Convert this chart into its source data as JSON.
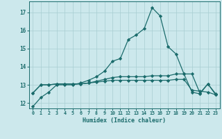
{
  "title": "",
  "xlabel": "Humidex (Indice chaleur)",
  "bg_color": "#cce8ec",
  "line_color": "#1a6b6b",
  "grid_color": "#a8cdd1",
  "xlim": [
    -0.5,
    23.5
  ],
  "ylim": [
    11.7,
    17.6
  ],
  "xticks": [
    0,
    1,
    2,
    3,
    4,
    5,
    6,
    7,
    8,
    9,
    10,
    11,
    12,
    13,
    14,
    15,
    16,
    17,
    18,
    19,
    20,
    21,
    22,
    23
  ],
  "yticks": [
    12,
    13,
    14,
    15,
    16,
    17
  ],
  "series": [
    [
      11.8,
      12.3,
      12.6,
      13.0,
      13.0,
      13.0,
      13.1,
      13.25,
      13.45,
      13.75,
      14.3,
      14.45,
      15.5,
      15.75,
      16.1,
      17.25,
      16.8,
      15.1,
      14.7,
      13.6,
      12.6,
      12.5,
      13.05,
      12.45
    ],
    [
      12.55,
      13.0,
      13.0,
      13.05,
      13.05,
      13.05,
      13.05,
      13.1,
      13.2,
      13.3,
      13.4,
      13.45,
      13.45,
      13.45,
      13.45,
      13.5,
      13.5,
      13.5,
      13.6,
      13.6,
      13.6,
      12.55,
      13.05,
      12.5
    ],
    [
      12.55,
      13.0,
      13.0,
      13.05,
      13.05,
      13.05,
      13.05,
      13.1,
      13.15,
      13.2,
      13.25,
      13.25,
      13.25,
      13.25,
      13.25,
      13.25,
      13.25,
      13.25,
      13.3,
      13.3,
      12.7,
      12.65,
      12.6,
      12.45
    ]
  ]
}
